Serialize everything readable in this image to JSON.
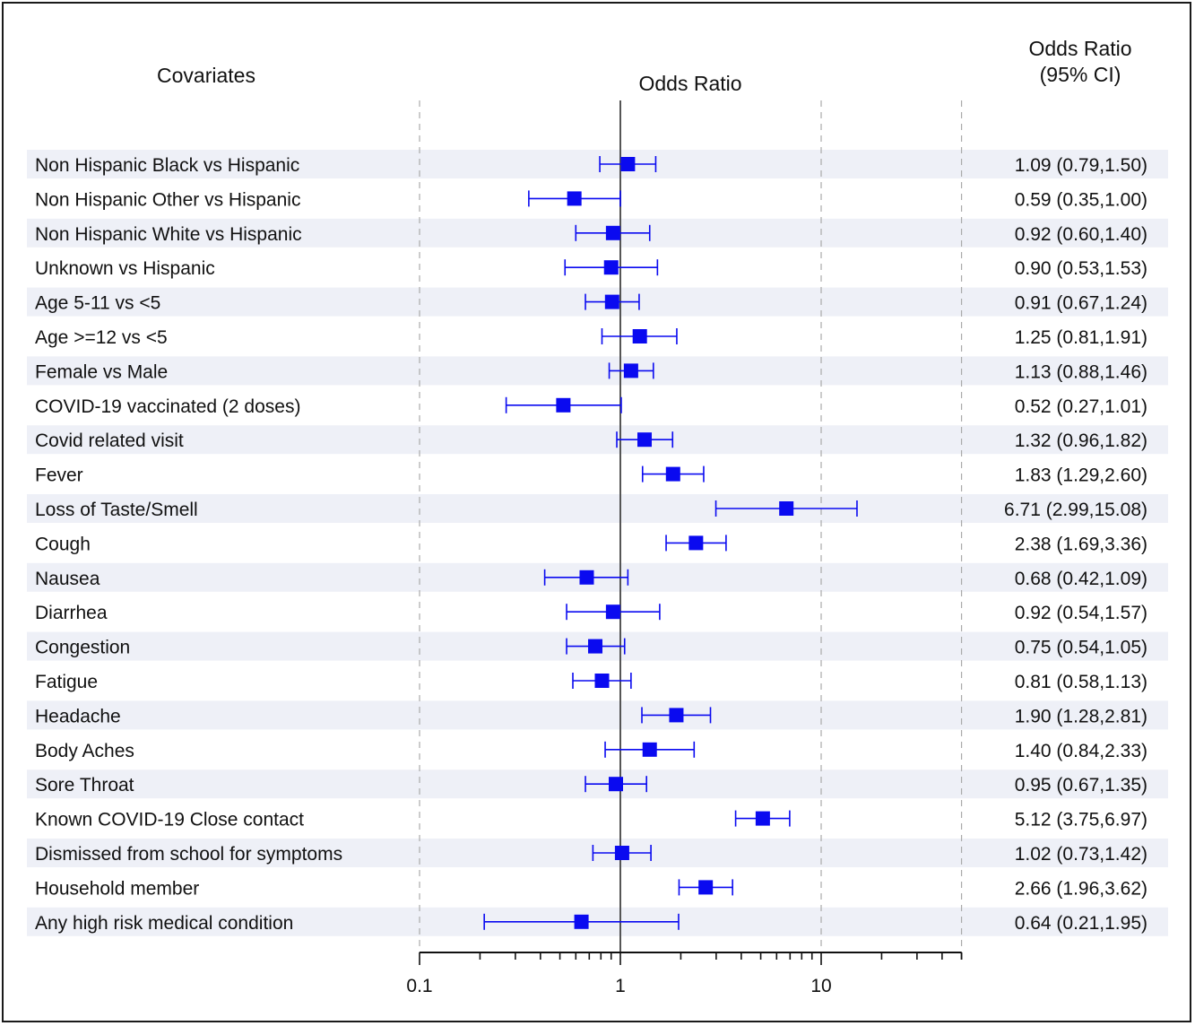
{
  "headers": {
    "covariates": "Covariates",
    "odds_ratio": "Odds Ratio",
    "odds_ratio_ci_line1": "Odds Ratio",
    "odds_ratio_ci_line2": "(95% CI)"
  },
  "colors": {
    "marker": "#0a0af0",
    "band": "#eef0f7",
    "axis": "#111111",
    "reference_line": "#555555",
    "gridline": "#aaaaaa"
  },
  "chart_data": {
    "type": "forest",
    "xscale": "log",
    "xlabel": "",
    "xlim": [
      0.1,
      50
    ],
    "xticks": [
      0.1,
      1,
      10
    ],
    "xtick_labels": [
      "0.1",
      "1",
      "10"
    ],
    "reference_value": 1,
    "rows": [
      {
        "label": "Non Hispanic Black vs Hispanic",
        "or": 1.09,
        "lo": 0.79,
        "hi": 1.5,
        "ci_text": "1.09 (0.79,1.50)"
      },
      {
        "label": "Non Hispanic Other vs Hispanic",
        "or": 0.59,
        "lo": 0.35,
        "hi": 1.0,
        "ci_text": "0.59 (0.35,1.00)"
      },
      {
        "label": "Non Hispanic White vs Hispanic",
        "or": 0.92,
        "lo": 0.6,
        "hi": 1.4,
        "ci_text": "0.92 (0.60,1.40)"
      },
      {
        "label": "Unknown vs Hispanic",
        "or": 0.9,
        "lo": 0.53,
        "hi": 1.53,
        "ci_text": "0.90 (0.53,1.53)"
      },
      {
        "label": "Age 5-11 vs <5",
        "or": 0.91,
        "lo": 0.67,
        "hi": 1.24,
        "ci_text": "0.91 (0.67,1.24)"
      },
      {
        "label": "Age >=12 vs <5",
        "or": 1.25,
        "lo": 0.81,
        "hi": 1.91,
        "ci_text": "1.25 (0.81,1.91)"
      },
      {
        "label": "Female vs Male",
        "or": 1.13,
        "lo": 0.88,
        "hi": 1.46,
        "ci_text": "1.13 (0.88,1.46)"
      },
      {
        "label": "COVID-19 vaccinated (2 doses)",
        "or": 0.52,
        "lo": 0.27,
        "hi": 1.01,
        "ci_text": "0.52 (0.27,1.01)"
      },
      {
        "label": "Covid related visit",
        "or": 1.32,
        "lo": 0.96,
        "hi": 1.82,
        "ci_text": "1.32 (0.96,1.82)"
      },
      {
        "label": "Fever",
        "or": 1.83,
        "lo": 1.29,
        "hi": 2.6,
        "ci_text": "1.83 (1.29,2.60)"
      },
      {
        "label": "Loss of Taste/Smell",
        "or": 6.71,
        "lo": 2.99,
        "hi": 15.08,
        "ci_text": "6.71 (2.99,15.08)"
      },
      {
        "label": "Cough",
        "or": 2.38,
        "lo": 1.69,
        "hi": 3.36,
        "ci_text": "2.38 (1.69,3.36)"
      },
      {
        "label": "Nausea",
        "or": 0.68,
        "lo": 0.42,
        "hi": 1.09,
        "ci_text": "0.68 (0.42,1.09)"
      },
      {
        "label": "Diarrhea",
        "or": 0.92,
        "lo": 0.54,
        "hi": 1.57,
        "ci_text": "0.92 (0.54,1.57)"
      },
      {
        "label": "Congestion",
        "or": 0.75,
        "lo": 0.54,
        "hi": 1.05,
        "ci_text": "0.75 (0.54,1.05)"
      },
      {
        "label": "Fatigue",
        "or": 0.81,
        "lo": 0.58,
        "hi": 1.13,
        "ci_text": "0.81 (0.58,1.13)"
      },
      {
        "label": "Headache",
        "or": 1.9,
        "lo": 1.28,
        "hi": 2.81,
        "ci_text": "1.90 (1.28,2.81)"
      },
      {
        "label": "Body Aches",
        "or": 1.4,
        "lo": 0.84,
        "hi": 2.33,
        "ci_text": "1.40 (0.84,2.33)"
      },
      {
        "label": "Sore Throat",
        "or": 0.95,
        "lo": 0.67,
        "hi": 1.35,
        "ci_text": "0.95 (0.67,1.35)"
      },
      {
        "label": "Known COVID-19 Close contact",
        "or": 5.12,
        "lo": 3.75,
        "hi": 6.97,
        "ci_text": "5.12 (3.75,6.97)"
      },
      {
        "label": "Dismissed from school for symptoms",
        "or": 1.02,
        "lo": 0.73,
        "hi": 1.42,
        "ci_text": "1.02 (0.73,1.42)"
      },
      {
        "label": "Household member",
        "or": 2.66,
        "lo": 1.96,
        "hi": 3.62,
        "ci_text": "2.66 (1.96,3.62)"
      },
      {
        "label": "Any high risk medical condition",
        "or": 0.64,
        "lo": 0.21,
        "hi": 1.95,
        "ci_text": "0.64 (0.21,1.95)"
      }
    ]
  }
}
